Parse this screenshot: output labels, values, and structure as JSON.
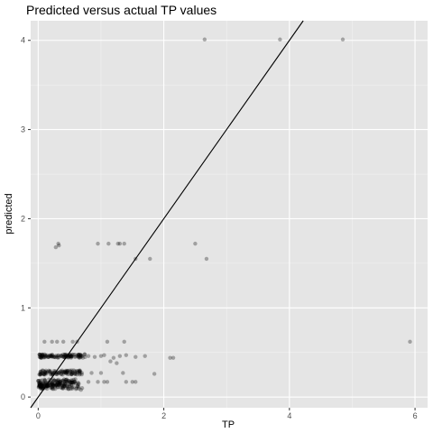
{
  "chart_data": {
    "type": "scatter",
    "title": "Predicted versus actual TP values",
    "xlabel": "TP",
    "ylabel": "predicted",
    "xlim": [
      -0.12,
      6.2
    ],
    "ylim": [
      -0.12,
      4.22
    ],
    "x_ticks": [
      0,
      2,
      4,
      6
    ],
    "y_ticks": [
      0,
      1,
      2,
      3,
      4
    ],
    "grid": true,
    "legend": "none",
    "colors": {
      "panel_background": "#e5e5e5",
      "grid_major": "#ffffff",
      "point": "#000000",
      "line": "#000000",
      "tick_label": "#4d4d4d"
    },
    "point_alpha": 0.3,
    "reference_line": {
      "slope": 1,
      "intercept": 0
    },
    "clusters": [
      {
        "x": [
          0.02,
          0.75
        ],
        "y": [
          0.44,
          0.48
        ],
        "n": 110
      },
      {
        "x": [
          0.02,
          0.7
        ],
        "y": [
          0.25,
          0.3
        ],
        "n": 100
      },
      {
        "x": [
          0.0,
          0.65
        ],
        "y": [
          0.09,
          0.2
        ],
        "n": 160
      },
      {
        "x": [
          0.02,
          0.45
        ],
        "y": [
          0.12,
          0.15
        ],
        "n": 40
      }
    ],
    "points": [
      {
        "x": 2.65,
        "y": 4.01
      },
      {
        "x": 3.85,
        "y": 4.01
      },
      {
        "x": 4.85,
        "y": 4.01
      },
      {
        "x": 0.28,
        "y": 1.68
      },
      {
        "x": 0.33,
        "y": 1.7
      },
      {
        "x": 0.32,
        "y": 1.72
      },
      {
        "x": 0.95,
        "y": 1.72
      },
      {
        "x": 1.12,
        "y": 1.72
      },
      {
        "x": 1.27,
        "y": 1.72
      },
      {
        "x": 1.3,
        "y": 1.72
      },
      {
        "x": 1.37,
        "y": 1.72
      },
      {
        "x": 2.5,
        "y": 1.72
      },
      {
        "x": 1.55,
        "y": 1.55
      },
      {
        "x": 1.78,
        "y": 1.55
      },
      {
        "x": 2.68,
        "y": 1.55
      },
      {
        "x": 0.1,
        "y": 0.62
      },
      {
        "x": 0.22,
        "y": 0.62
      },
      {
        "x": 0.3,
        "y": 0.62
      },
      {
        "x": 0.4,
        "y": 0.62
      },
      {
        "x": 0.55,
        "y": 0.62
      },
      {
        "x": 0.62,
        "y": 0.62
      },
      {
        "x": 1.1,
        "y": 0.62
      },
      {
        "x": 1.37,
        "y": 0.62
      },
      {
        "x": 5.92,
        "y": 0.62
      },
      {
        "x": 2.1,
        "y": 0.44
      },
      {
        "x": 2.15,
        "y": 0.44
      },
      {
        "x": 0.8,
        "y": 0.46
      },
      {
        "x": 0.9,
        "y": 0.45
      },
      {
        "x": 1.0,
        "y": 0.46
      },
      {
        "x": 1.05,
        "y": 0.47
      },
      {
        "x": 1.2,
        "y": 0.44
      },
      {
        "x": 1.3,
        "y": 0.46
      },
      {
        "x": 1.4,
        "y": 0.47
      },
      {
        "x": 1.55,
        "y": 0.45
      },
      {
        "x": 1.7,
        "y": 0.46
      },
      {
        "x": 1.15,
        "y": 0.4
      },
      {
        "x": 1.25,
        "y": 0.38
      },
      {
        "x": 0.85,
        "y": 0.27
      },
      {
        "x": 1.0,
        "y": 0.27
      },
      {
        "x": 1.35,
        "y": 0.27
      },
      {
        "x": 1.85,
        "y": 0.26
      },
      {
        "x": 0.8,
        "y": 0.17
      },
      {
        "x": 0.95,
        "y": 0.17
      },
      {
        "x": 1.05,
        "y": 0.17
      },
      {
        "x": 1.1,
        "y": 0.17
      },
      {
        "x": 1.4,
        "y": 0.17
      },
      {
        "x": 1.5,
        "y": 0.17
      },
      {
        "x": 1.55,
        "y": 0.17
      },
      {
        "x": 0.7,
        "y": 0.1
      },
      {
        "x": 0.68,
        "y": 0.08
      },
      {
        "x": 0.6,
        "y": 0.09
      }
    ]
  }
}
